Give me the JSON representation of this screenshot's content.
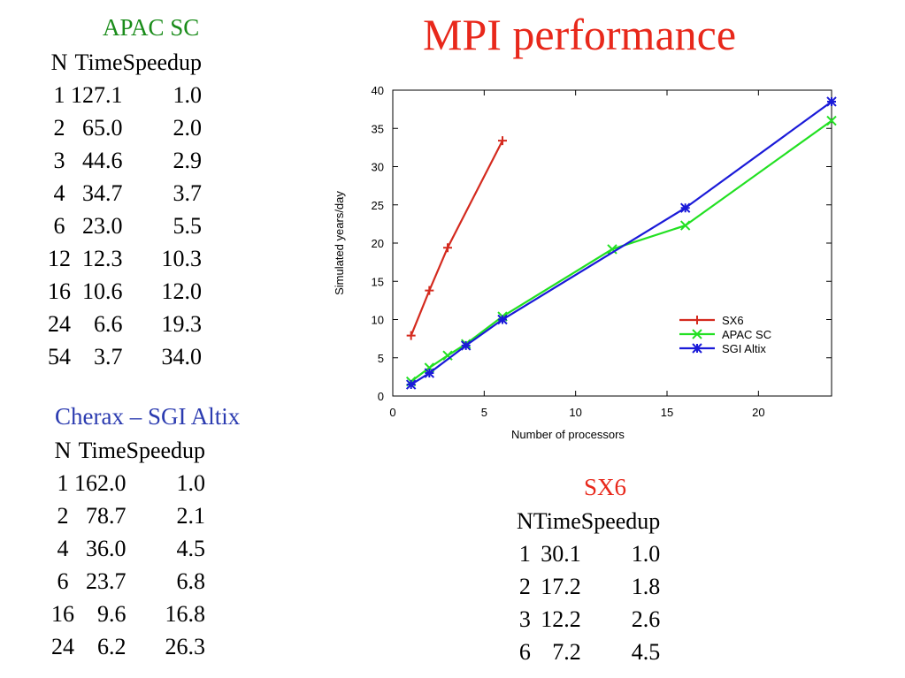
{
  "title": "MPI performance",
  "tables": {
    "apac": {
      "title": "APAC SC",
      "title_color": "#1a8c1a",
      "headers": [
        "N",
        "Time",
        "Speedup"
      ],
      "rows": [
        [
          "1",
          "127.1",
          "1.0"
        ],
        [
          "2",
          "65.0",
          "2.0"
        ],
        [
          "3",
          "44.6",
          "2.9"
        ],
        [
          "4",
          "34.7",
          "3.7"
        ],
        [
          "6",
          "23.0",
          "5.5"
        ],
        [
          "12",
          "12.3",
          "10.3"
        ],
        [
          "16",
          "10.6",
          "12.0"
        ],
        [
          "24",
          "6.6",
          "19.3"
        ],
        [
          "54",
          "3.7",
          "34.0"
        ]
      ]
    },
    "sgi": {
      "title": "Cherax – SGI Altix",
      "title_color": "#2b3bb0",
      "headers": [
        "N",
        "Time",
        "Speedup"
      ],
      "rows": [
        [
          "1",
          "162.0",
          "1.0"
        ],
        [
          "2",
          "78.7",
          "2.1"
        ],
        [
          "4",
          "36.0",
          "4.5"
        ],
        [
          "6",
          "23.7",
          "6.8"
        ],
        [
          "16",
          "9.6",
          "16.8"
        ],
        [
          "24",
          "6.2",
          "26.3"
        ]
      ]
    },
    "sx6": {
      "title": "SX6",
      "title_color": "#e8281b",
      "headers": [
        "N",
        "Time",
        "Speedup"
      ],
      "rows": [
        [
          "1",
          "30.1",
          "1.0"
        ],
        [
          "2",
          "17.2",
          "1.8"
        ],
        [
          "3",
          "12.2",
          "2.6"
        ],
        [
          "6",
          "7.2",
          "4.5"
        ]
      ]
    }
  },
  "chart_data": {
    "type": "line",
    "title": "",
    "xlabel": "Number of processors",
    "ylabel": "Simulated years/day",
    "xlim": [
      0,
      24
    ],
    "ylim": [
      0,
      40
    ],
    "xticks": [
      0,
      5,
      10,
      15,
      20
    ],
    "yticks": [
      0,
      5,
      10,
      15,
      20,
      25,
      30,
      35,
      40
    ],
    "grid": false,
    "legend_position": "right",
    "series": [
      {
        "name": "SX6",
        "color": "#d42a1e",
        "marker": "plus",
        "x": [
          1,
          2,
          3,
          6
        ],
        "y": [
          7.9,
          13.8,
          19.4,
          33.4
        ]
      },
      {
        "name": "APAC SC",
        "color": "#22e022",
        "marker": "cross",
        "x": [
          1,
          2,
          3,
          4,
          6,
          12,
          16,
          24
        ],
        "y": [
          1.9,
          3.7,
          5.3,
          6.8,
          10.4,
          19.2,
          22.3,
          36.0
        ]
      },
      {
        "name": "SGI Altix",
        "color": "#1a1ad8",
        "marker": "star",
        "x": [
          1,
          2,
          4,
          6,
          16,
          24
        ],
        "y": [
          1.5,
          3.0,
          6.6,
          10.0,
          24.6,
          38.5
        ]
      }
    ]
  }
}
